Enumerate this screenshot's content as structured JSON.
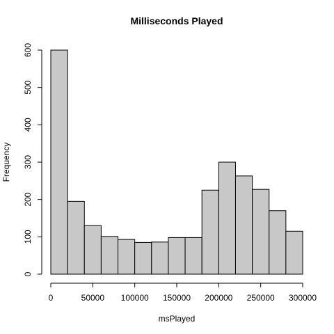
{
  "chart_data": {
    "type": "bar",
    "title": "Milliseconds Played",
    "xlabel": "msPlayed",
    "ylabel": "Frequency",
    "bin_edges": [
      0,
      20000,
      40000,
      60000,
      80000,
      100000,
      120000,
      140000,
      160000,
      180000,
      200000,
      220000,
      240000,
      260000,
      280000,
      300000
    ],
    "values": [
      600,
      195,
      130,
      101,
      93,
      85,
      86,
      98,
      98,
      225,
      300,
      263,
      227,
      170,
      115
    ],
    "xlim": [
      0,
      300000
    ],
    "ylim": [
      0,
      600
    ],
    "x_ticks": [
      0,
      50000,
      100000,
      150000,
      200000,
      250000,
      300000
    ],
    "x_tick_labels": [
      "0",
      "50000",
      "100000",
      "150000",
      "200000",
      "250000",
      "300000"
    ],
    "y_ticks": [
      0,
      100,
      200,
      300,
      400,
      500,
      600
    ],
    "y_tick_labels": [
      "0",
      "100",
      "200",
      "300",
      "400",
      "500",
      "600"
    ],
    "bar_color": "#c8c8c8",
    "grid": false
  }
}
